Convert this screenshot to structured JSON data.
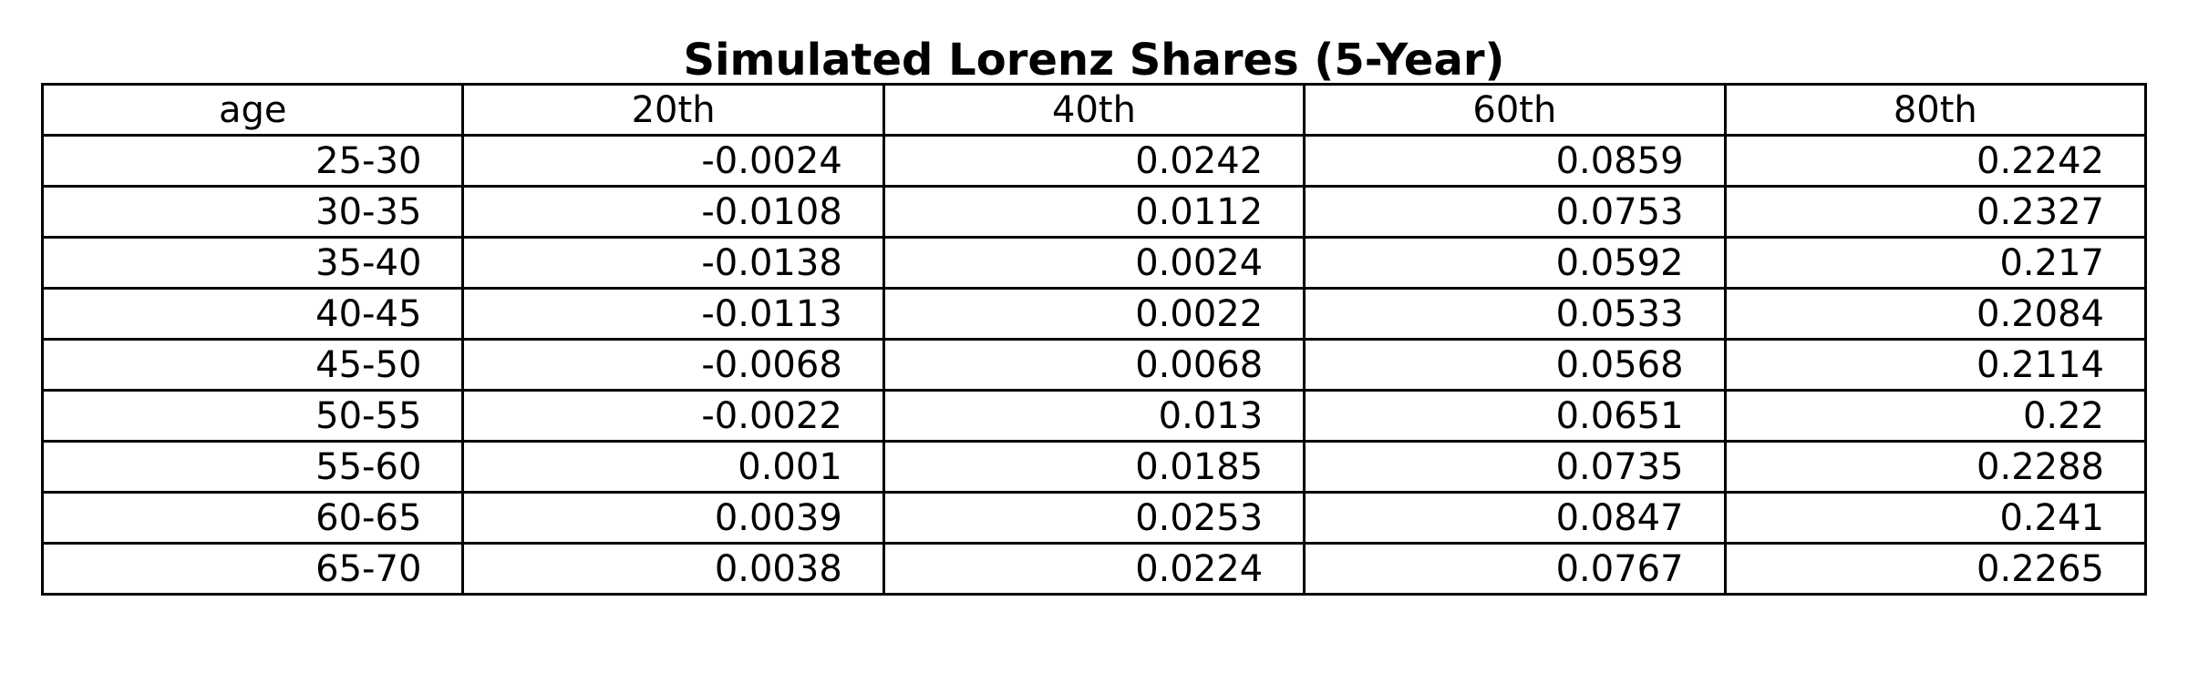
{
  "chart_data": {
    "type": "table",
    "title": "Simulated Lorenz Shares (5-Year)",
    "columns": [
      "age",
      "20th",
      "40th",
      "60th",
      "80th"
    ],
    "rows": [
      [
        "25-30",
        "-0.0024",
        "0.0242",
        "0.0859",
        "0.2242"
      ],
      [
        "30-35",
        "-0.0108",
        "0.0112",
        "0.0753",
        "0.2327"
      ],
      [
        "35-40",
        "-0.0138",
        "0.0024",
        "0.0592",
        "0.217"
      ],
      [
        "40-45",
        "-0.0113",
        "0.0022",
        "0.0533",
        "0.2084"
      ],
      [
        "45-50",
        "-0.0068",
        "0.0068",
        "0.0568",
        "0.2114"
      ],
      [
        "50-55",
        "-0.0022",
        "0.013",
        "0.0651",
        "0.22"
      ],
      [
        "55-60",
        "0.001",
        "0.0185",
        "0.0735",
        "0.2288"
      ],
      [
        "60-65",
        "0.0039",
        "0.0253",
        "0.0847",
        "0.241"
      ],
      [
        "65-70",
        "0.0038",
        "0.0224",
        "0.0767",
        "0.2265"
      ]
    ]
  }
}
